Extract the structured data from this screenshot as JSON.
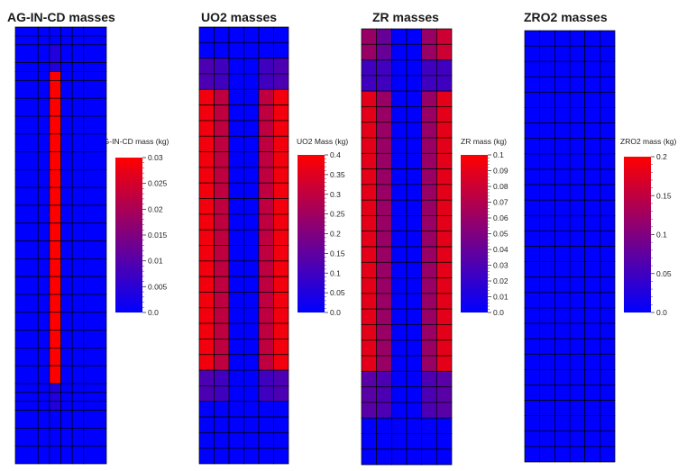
{
  "chart_data": [
    {
      "type": "heatmap",
      "title": "AG-IN-CD masses",
      "colorbar": {
        "label": "AG-IN-CD mass (kg)",
        "min": 0.0,
        "max": 0.03,
        "ticks": [
          "0.0",
          "0.005",
          "0.01",
          "0.015",
          "0.02",
          "0.025",
          "0.03"
        ]
      },
      "colors": {
        "low": "#0000ff",
        "high": "#ff0000"
      },
      "grid": {
        "col_weights": [
          2,
          1,
          1,
          1,
          1,
          2
        ],
        "row_weights": [
          1,
          1,
          2,
          1,
          1,
          2,
          2,
          2,
          2,
          2,
          2,
          2,
          2,
          2,
          2,
          2,
          2,
          2,
          2,
          2,
          2,
          2,
          1,
          1,
          1,
          2,
          2,
          2
        ],
        "values": [
          [
            0,
            0,
            0,
            0,
            0,
            0
          ],
          [
            0,
            0,
            0,
            0,
            0,
            0
          ],
          [
            0,
            0,
            0.004,
            0,
            0,
            0
          ],
          [
            0,
            0,
            0.004,
            0,
            0,
            0
          ],
          [
            0,
            0,
            0.03,
            0,
            0,
            0
          ],
          [
            0,
            0,
            0.03,
            0,
            0,
            0
          ],
          [
            0,
            0,
            0.03,
            0,
            0,
            0
          ],
          [
            0,
            0,
            0.03,
            0,
            0,
            0
          ],
          [
            0,
            0,
            0.03,
            0,
            0,
            0
          ],
          [
            0,
            0,
            0.03,
            0,
            0,
            0
          ],
          [
            0,
            0,
            0.03,
            0,
            0,
            0
          ],
          [
            0,
            0,
            0.03,
            0,
            0,
            0
          ],
          [
            0,
            0,
            0.03,
            0,
            0,
            0
          ],
          [
            0,
            0,
            0.03,
            0,
            0,
            0
          ],
          [
            0,
            0,
            0.03,
            0,
            0,
            0
          ],
          [
            0,
            0,
            0.03,
            0,
            0,
            0
          ],
          [
            0,
            0,
            0.03,
            0,
            0,
            0
          ],
          [
            0,
            0,
            0.03,
            0,
            0,
            0
          ],
          [
            0,
            0,
            0.03,
            0,
            0,
            0
          ],
          [
            0,
            0,
            0.03,
            0,
            0,
            0
          ],
          [
            0,
            0,
            0.03,
            0,
            0,
            0
          ],
          [
            0,
            0,
            0.03,
            0,
            0,
            0
          ],
          [
            0,
            0,
            0.004,
            0,
            0,
            0
          ],
          [
            0,
            0,
            0.004,
            0,
            0,
            0
          ],
          [
            0,
            0,
            0.004,
            0,
            0,
            0
          ],
          [
            0,
            0,
            0,
            0,
            0,
            0
          ],
          [
            0,
            0,
            0,
            0,
            0,
            0
          ],
          [
            0,
            0,
            0,
            0,
            0,
            0
          ]
        ]
      }
    },
    {
      "type": "heatmap",
      "title": "UO2 masses",
      "colorbar": {
        "label": "UO2 Mass (kg)",
        "min": 0.0,
        "max": 0.4,
        "ticks": [
          "0.0",
          "0.05",
          "0.1",
          "0.15",
          "0.2",
          "0.25",
          "0.3",
          "0.35",
          "0.4"
        ]
      },
      "colors": {
        "low": "#0000ff",
        "high": "#ff0000"
      },
      "grid": {
        "col_weights": [
          1,
          1,
          1,
          1,
          1,
          1
        ],
        "row_weights": [
          1,
          1,
          1,
          1,
          1,
          1,
          1,
          1,
          1,
          1,
          1,
          1,
          1,
          1,
          1,
          1,
          1,
          1,
          1,
          1,
          1,
          1,
          1,
          1,
          1,
          1,
          1,
          1
        ],
        "values": [
          [
            0,
            0,
            0,
            0,
            0,
            0
          ],
          [
            0,
            0,
            0,
            0,
            0,
            0
          ],
          [
            0.12,
            0.1,
            0,
            0,
            0.1,
            0.12
          ],
          [
            0.12,
            0.1,
            0,
            0,
            0.1,
            0.12
          ],
          [
            0.38,
            0.3,
            0,
            0,
            0.3,
            0.38
          ],
          [
            0.38,
            0.3,
            0,
            0,
            0.3,
            0.38
          ],
          [
            0.38,
            0.3,
            0,
            0,
            0.3,
            0.38
          ],
          [
            0.38,
            0.3,
            0,
            0,
            0.3,
            0.38
          ],
          [
            0.38,
            0.3,
            0,
            0,
            0.3,
            0.38
          ],
          [
            0.38,
            0.3,
            0,
            0,
            0.3,
            0.38
          ],
          [
            0.38,
            0.3,
            0,
            0,
            0.3,
            0.38
          ],
          [
            0.38,
            0.3,
            0,
            0,
            0.3,
            0.38
          ],
          [
            0.38,
            0.3,
            0,
            0,
            0.3,
            0.38
          ],
          [
            0.38,
            0.3,
            0,
            0,
            0.3,
            0.38
          ],
          [
            0.38,
            0.3,
            0,
            0,
            0.3,
            0.38
          ],
          [
            0.38,
            0.3,
            0,
            0,
            0.3,
            0.38
          ],
          [
            0.38,
            0.3,
            0,
            0,
            0.3,
            0.38
          ],
          [
            0.38,
            0.3,
            0,
            0,
            0.3,
            0.38
          ],
          [
            0.38,
            0.3,
            0,
            0,
            0.3,
            0.38
          ],
          [
            0.38,
            0.3,
            0,
            0,
            0.3,
            0.38
          ],
          [
            0.38,
            0.3,
            0,
            0,
            0.3,
            0.38
          ],
          [
            0.38,
            0.3,
            0,
            0,
            0.3,
            0.38
          ],
          [
            0.12,
            0.1,
            0,
            0,
            0.1,
            0.12
          ],
          [
            0.12,
            0.1,
            0,
            0,
            0.1,
            0.12
          ],
          [
            0,
            0,
            0,
            0,
            0,
            0
          ],
          [
            0,
            0,
            0,
            0,
            0,
            0
          ],
          [
            0,
            0,
            0,
            0,
            0,
            0
          ],
          [
            0,
            0,
            0,
            0,
            0,
            0
          ]
        ]
      }
    },
    {
      "type": "heatmap",
      "title": "ZR masses",
      "colorbar": {
        "label": "ZR mass (kg)",
        "min": 0.0,
        "max": 0.1,
        "ticks": [
          "0.0",
          "0.01",
          "0.02",
          "0.03",
          "0.04",
          "0.05",
          "0.06",
          "0.07",
          "0.08",
          "0.09",
          "0.1"
        ]
      },
      "colors": {
        "low": "#0000ff",
        "high": "#ff0000"
      },
      "grid": {
        "col_weights": [
          1,
          1,
          1,
          1,
          1,
          1
        ],
        "row_weights": [
          1,
          1,
          1,
          1,
          1,
          1,
          1,
          1,
          1,
          1,
          1,
          1,
          1,
          1,
          1,
          1,
          1,
          1,
          1,
          1,
          1,
          1,
          1,
          1,
          1,
          1,
          1,
          1
        ],
        "values": [
          [
            0.06,
            0.04,
            0,
            0,
            0.06,
            0.08
          ],
          [
            0.06,
            0.04,
            0,
            0,
            0.06,
            0.08
          ],
          [
            0.025,
            0.025,
            0,
            0,
            0.025,
            0.025
          ],
          [
            0.025,
            0.025,
            0,
            0,
            0.025,
            0.025
          ],
          [
            0.09,
            0.06,
            0,
            0,
            0.06,
            0.09
          ],
          [
            0.09,
            0.06,
            0,
            0,
            0.06,
            0.09
          ],
          [
            0.09,
            0.06,
            0,
            0,
            0.06,
            0.09
          ],
          [
            0.09,
            0.06,
            0,
            0,
            0.06,
            0.09
          ],
          [
            0.09,
            0.06,
            0,
            0,
            0.06,
            0.09
          ],
          [
            0.09,
            0.06,
            0,
            0,
            0.06,
            0.09
          ],
          [
            0.09,
            0.06,
            0,
            0,
            0.06,
            0.09
          ],
          [
            0.09,
            0.06,
            0,
            0,
            0.06,
            0.09
          ],
          [
            0.09,
            0.06,
            0,
            0,
            0.06,
            0.09
          ],
          [
            0.09,
            0.06,
            0,
            0,
            0.06,
            0.09
          ],
          [
            0.09,
            0.06,
            0,
            0,
            0.06,
            0.09
          ],
          [
            0.09,
            0.06,
            0,
            0,
            0.06,
            0.09
          ],
          [
            0.09,
            0.06,
            0,
            0,
            0.06,
            0.09
          ],
          [
            0.09,
            0.06,
            0,
            0,
            0.06,
            0.09
          ],
          [
            0.09,
            0.06,
            0,
            0,
            0.06,
            0.09
          ],
          [
            0.09,
            0.06,
            0,
            0,
            0.06,
            0.09
          ],
          [
            0.09,
            0.06,
            0,
            0,
            0.06,
            0.09
          ],
          [
            0.09,
            0.06,
            0,
            0,
            0.06,
            0.09
          ],
          [
            0.035,
            0.03,
            0,
            0,
            0.03,
            0.035
          ],
          [
            0.035,
            0.03,
            0,
            0,
            0.03,
            0.035
          ],
          [
            0.035,
            0.03,
            0,
            0,
            0.03,
            0.035
          ],
          [
            0,
            0,
            0,
            0,
            0,
            0
          ],
          [
            0,
            0,
            0,
            0,
            0,
            0
          ],
          [
            0,
            0,
            0,
            0,
            0,
            0
          ]
        ]
      }
    },
    {
      "type": "heatmap",
      "title": "ZRO2 masses",
      "colorbar": {
        "label": "ZRO2 mass (kg)",
        "min": 0.0,
        "max": 0.2,
        "ticks": [
          "0.0",
          "0.05",
          "0.1",
          "0.15",
          "0.2"
        ]
      },
      "colors": {
        "low": "#0000ff",
        "high": "#ff0000"
      },
      "grid": {
        "col_weights": [
          1,
          1,
          1,
          1,
          1,
          1
        ],
        "row_weights": [
          1,
          1,
          1,
          1,
          1,
          1,
          1,
          1,
          1,
          1,
          1,
          1,
          1,
          1,
          1,
          1,
          1,
          1,
          1,
          1,
          1,
          1,
          1,
          1,
          1,
          1,
          1,
          1
        ],
        "values": [
          [
            0,
            0,
            0,
            0,
            0,
            0
          ],
          [
            0,
            0,
            0,
            0,
            0,
            0
          ],
          [
            0,
            0,
            0,
            0,
            0,
            0
          ],
          [
            0,
            0,
            0,
            0,
            0,
            0
          ],
          [
            0,
            0,
            0,
            0,
            0,
            0
          ],
          [
            0,
            0,
            0,
            0,
            0,
            0
          ],
          [
            0,
            0,
            0,
            0,
            0,
            0
          ],
          [
            0,
            0,
            0,
            0,
            0,
            0
          ],
          [
            0,
            0,
            0,
            0,
            0,
            0
          ],
          [
            0,
            0,
            0,
            0,
            0,
            0
          ],
          [
            0,
            0,
            0,
            0,
            0,
            0
          ],
          [
            0,
            0,
            0,
            0,
            0,
            0
          ],
          [
            0,
            0,
            0,
            0,
            0,
            0
          ],
          [
            0,
            0,
            0,
            0,
            0,
            0
          ],
          [
            0,
            0,
            0,
            0,
            0,
            0
          ],
          [
            0,
            0,
            0,
            0,
            0,
            0
          ],
          [
            0,
            0,
            0,
            0,
            0,
            0
          ],
          [
            0,
            0,
            0,
            0,
            0,
            0
          ],
          [
            0,
            0,
            0,
            0,
            0,
            0
          ],
          [
            0,
            0,
            0,
            0,
            0,
            0
          ],
          [
            0,
            0,
            0,
            0,
            0,
            0
          ],
          [
            0,
            0,
            0,
            0,
            0,
            0
          ],
          [
            0,
            0,
            0,
            0,
            0,
            0
          ],
          [
            0,
            0,
            0,
            0,
            0,
            0
          ],
          [
            0,
            0,
            0,
            0,
            0,
            0
          ],
          [
            0,
            0,
            0,
            0,
            0,
            0
          ],
          [
            0,
            0,
            0,
            0,
            0,
            0
          ],
          [
            0,
            0,
            0,
            0,
            0,
            0
          ]
        ]
      }
    }
  ]
}
